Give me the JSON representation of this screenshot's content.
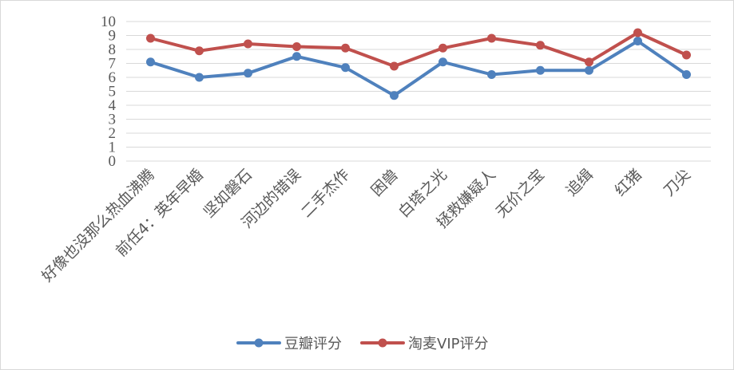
{
  "chart_data": {
    "type": "line",
    "categories": [
      "好像也没那么热血沸腾",
      "前任4：英年早婚",
      "坚如磐石",
      "河边的错误",
      "二手杰作",
      "困兽",
      "白塔之光",
      "拯救嫌疑人",
      "无价之宝",
      "追缉",
      "红猪",
      "刀尖"
    ],
    "series": [
      {
        "name": "豆瓣评分",
        "color": "#4f81bd",
        "values": [
          7.1,
          6.0,
          6.3,
          7.5,
          6.7,
          4.7,
          7.1,
          6.2,
          6.5,
          6.5,
          8.6,
          6.2
        ]
      },
      {
        "name": "淘麦VIP评分",
        "color": "#c0504d",
        "values": [
          8.8,
          7.9,
          8.4,
          8.2,
          8.1,
          6.8,
          8.1,
          8.8,
          8.3,
          7.1,
          9.2,
          7.6
        ]
      }
    ],
    "yticks": [
      "0",
      "1",
      "2",
      "3",
      "4",
      "5",
      "6",
      "7",
      "8",
      "9",
      "10"
    ],
    "ylim": [
      0,
      10
    ],
    "grid": true,
    "legend": "bottom"
  }
}
